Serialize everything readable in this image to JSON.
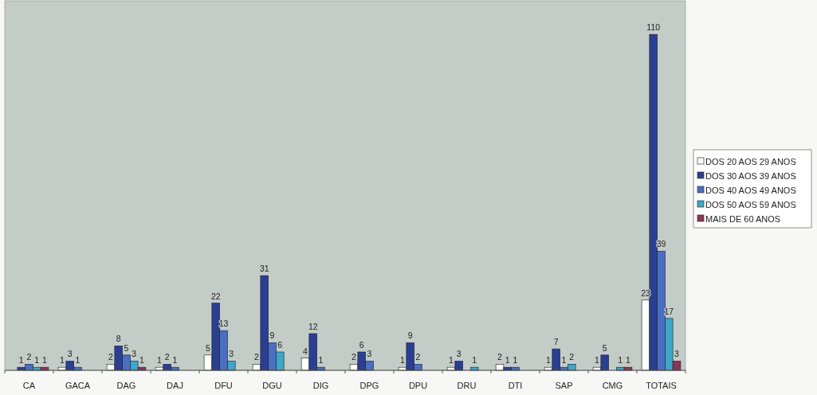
{
  "chart_data": {
    "type": "bar",
    "categories": [
      "CA",
      "GACA",
      "DAG",
      "DAJ",
      "DFU",
      "DGU",
      "DIG",
      "DPG",
      "DPU",
      "DRU",
      "DTI",
      "SAP",
      "CMG",
      "TOTAIS"
    ],
    "series": [
      {
        "name": "DOS 20 AOS 29 ANOS",
        "color": "#ffffff",
        "values": [
          null,
          1,
          2,
          1,
          5,
          2,
          4,
          2,
          1,
          1,
          2,
          1,
          1,
          23
        ]
      },
      {
        "name": "DOS 30 AOS 39 ANOS",
        "color": "#2b3f92",
        "values": [
          1,
          3,
          8,
          2,
          22,
          31,
          12,
          6,
          9,
          3,
          1,
          7,
          5,
          110
        ]
      },
      {
        "name": "DOS 40 AOS 49 ANOS",
        "color": "#4a6fc2",
        "values": [
          2,
          1,
          5,
          1,
          13,
          9,
          1,
          3,
          2,
          null,
          1,
          1,
          null,
          39
        ]
      },
      {
        "name": "DOS 50 AOS 59 ANOS",
        "color": "#3ea6c9",
        "values": [
          1,
          null,
          3,
          null,
          3,
          6,
          null,
          null,
          null,
          1,
          null,
          2,
          1,
          17
        ]
      },
      {
        "name": "MAIS DE 60 ANOS",
        "color": "#8b3559",
        "values": [
          1,
          null,
          1,
          null,
          null,
          null,
          null,
          null,
          null,
          null,
          null,
          null,
          1,
          3
        ]
      }
    ],
    "data_labels": true,
    "legend": "right"
  }
}
